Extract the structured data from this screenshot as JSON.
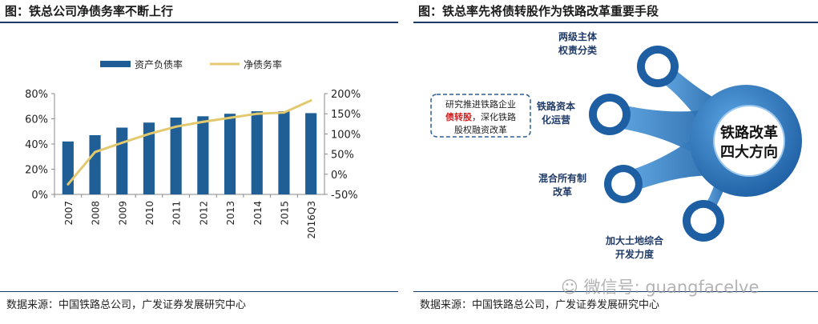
{
  "left": {
    "title": "图：铁总公司净债务率不断上行",
    "source": "数据来源：中国铁路总公司，广发证券发展研究中心"
  },
  "right": {
    "title": "图：铁总率先将债转股作为铁路改革重要手段",
    "source": "数据来源：中国铁路总公司，广发证券发展研究中心",
    "hub_label": [
      "铁路改革",
      "四大方向"
    ],
    "branches": [
      {
        "lines": [
          "两级主体",
          "权责分类"
        ]
      },
      {
        "lines": [
          "铁路资本",
          "化运营"
        ]
      },
      {
        "lines": [
          "混合所有制",
          "改革"
        ]
      },
      {
        "lines": [
          "加大土地综合",
          "开发力度"
        ]
      }
    ],
    "callout": {
      "line1": "研究推进铁路企业",
      "line2_highlight": "债转股",
      "line2_rest": "，深化铁路",
      "line3": "股权融资改革"
    },
    "colors": {
      "dark": "#1e5fa3",
      "light": "#5aa4e2",
      "highlight": "#d01f1f"
    }
  },
  "watermark": {
    "text": "微信号: guangfacelve"
  },
  "chart_data": {
    "type": "bar",
    "categories": [
      "2007",
      "2008",
      "2009",
      "2010",
      "2011",
      "2012",
      "2013",
      "2014",
      "2015",
      "2016Q3"
    ],
    "series": [
      {
        "name": "资产负债率",
        "type": "bar",
        "axis": "left",
        "values": [
          42,
          47,
          53,
          57,
          61,
          62,
          64,
          66,
          66,
          64.5
        ],
        "color": "#1f5f95"
      },
      {
        "name": "净债务率",
        "type": "line",
        "axis": "right",
        "values": [
          -25,
          55,
          78,
          100,
          118,
          130,
          140,
          150,
          153,
          183
        ],
        "color": "#e3c96e"
      }
    ],
    "title": "",
    "xlabel": "",
    "ylabel": "",
    "ylim": [
      0,
      80
    ],
    "y2lim": [
      -50,
      200
    ],
    "yticks": [
      "0%",
      "20%",
      "40%",
      "60%",
      "80%"
    ],
    "y2ticks": [
      "-50%",
      "0%",
      "50%",
      "100%",
      "150%",
      "200%"
    ],
    "legend": "top-center",
    "grid": false
  }
}
